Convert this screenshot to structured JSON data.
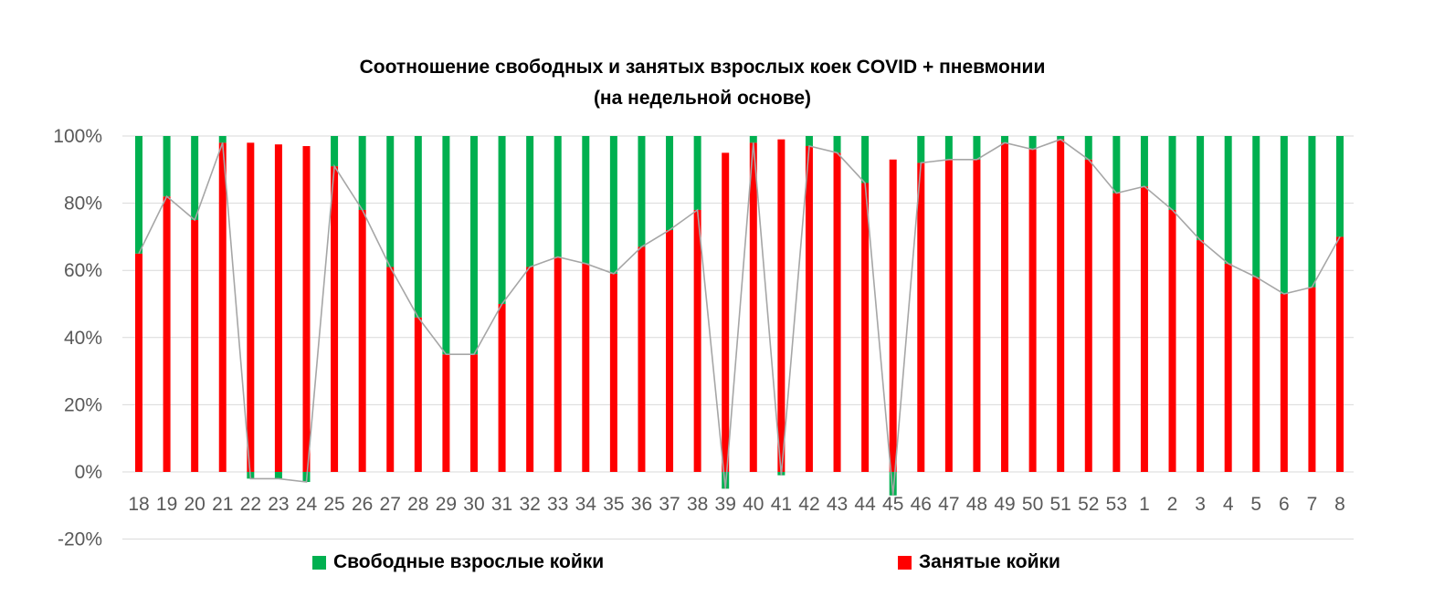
{
  "chart_data": {
    "type": "bar",
    "stacked": true,
    "title": "Соотношение свободных и занятых взрослых коек COVID + пневмонии",
    "subtitle": "(на недельной основе)",
    "categories": [
      "18",
      "19",
      "20",
      "21",
      "22",
      "23",
      "24",
      "25",
      "26",
      "27",
      "28",
      "29",
      "30",
      "31",
      "32",
      "33",
      "34",
      "35",
      "36",
      "37",
      "38",
      "39",
      "40",
      "41",
      "42",
      "43",
      "44",
      "45",
      "46",
      "47",
      "48",
      "49",
      "50",
      "51",
      "52",
      "53",
      "1",
      "2",
      "3",
      "4",
      "5",
      "6",
      "7",
      "8"
    ],
    "ylim": [
      -20,
      100
    ],
    "yticks": [
      -20,
      0,
      20,
      40,
      60,
      80,
      100
    ],
    "ytick_labels": [
      "-20%",
      "0%",
      "20%",
      "40%",
      "60%",
      "80%",
      "100%"
    ],
    "grid": true,
    "legend_position": "bottom",
    "series": [
      {
        "name": "Свободные взрослые койки",
        "color": "#00B050",
        "values": [
          35,
          18,
          25,
          2,
          -2,
          -2,
          -3,
          9,
          22,
          39,
          54,
          65,
          65,
          50,
          39,
          36,
          38,
          41,
          33,
          28,
          22,
          -5,
          2,
          -1,
          3,
          5,
          14,
          -7,
          8,
          7,
          7,
          2,
          4,
          1,
          7,
          17,
          15,
          22,
          31,
          38,
          42,
          47,
          45,
          30
        ]
      },
      {
        "name": "Занятые койки",
        "color": "#FF0000",
        "values": [
          65,
          82,
          75,
          98,
          98,
          97.5,
          97,
          91,
          78,
          61,
          46,
          35,
          35,
          50,
          61,
          64,
          62,
          59,
          67,
          72,
          78,
          95,
          98,
          99,
          97,
          95,
          86,
          93,
          92,
          93,
          93,
          98,
          96,
          99,
          93,
          83,
          85,
          78,
          69,
          62,
          58,
          53,
          55,
          70
        ]
      }
    ],
    "line_color": "#A6A6A6"
  }
}
